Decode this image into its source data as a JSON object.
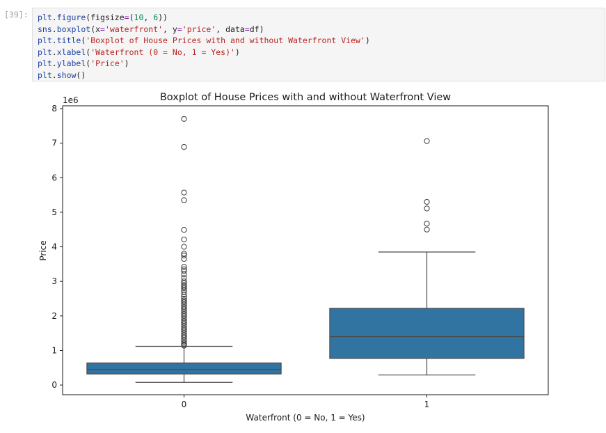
{
  "cell": {
    "prompt": "[39]:",
    "code": [
      [
        [
          "plt",
          "n"
        ],
        [
          ".",
          "p"
        ],
        [
          "figure",
          "n"
        ],
        [
          "(figsize",
          "p"
        ],
        [
          "=",
          "k"
        ],
        [
          "(",
          "p"
        ],
        [
          "10",
          "num"
        ],
        [
          ", ",
          "p"
        ],
        [
          "6",
          "num"
        ],
        [
          "))",
          "p"
        ]
      ],
      [
        [
          "sns",
          "n"
        ],
        [
          ".",
          "p"
        ],
        [
          "boxplot",
          "n"
        ],
        [
          "(x",
          "p"
        ],
        [
          "=",
          "k"
        ],
        [
          "'waterfront'",
          "s"
        ],
        [
          ", y",
          "p"
        ],
        [
          "=",
          "k"
        ],
        [
          "'price'",
          "s"
        ],
        [
          ", data",
          "p"
        ],
        [
          "=",
          "k"
        ],
        [
          "df)",
          "p"
        ]
      ],
      [
        [
          "plt",
          "n"
        ],
        [
          ".",
          "p"
        ],
        [
          "title",
          "n"
        ],
        [
          "(",
          "p"
        ],
        [
          "'Boxplot of House Prices with and without Waterfront View'",
          "s"
        ],
        [
          ")",
          "p"
        ]
      ],
      [
        [
          "plt",
          "n"
        ],
        [
          ".",
          "p"
        ],
        [
          "xlabel",
          "n"
        ],
        [
          "(",
          "p"
        ],
        [
          "'Waterfront (0 = No, 1 = Yes)'",
          "s"
        ],
        [
          ")",
          "p"
        ]
      ],
      [
        [
          "plt",
          "n"
        ],
        [
          ".",
          "p"
        ],
        [
          "ylabel",
          "n"
        ],
        [
          "(",
          "p"
        ],
        [
          "'Price'",
          "s"
        ],
        [
          ")",
          "p"
        ]
      ],
      [
        [
          "plt",
          "n"
        ],
        [
          ".",
          "p"
        ],
        [
          "show",
          "n"
        ],
        [
          "()",
          "p"
        ]
      ]
    ]
  },
  "colors": {
    "box_fill": "#3274a1",
    "line": "#4a4a4a"
  },
  "chart_data": {
    "type": "box",
    "title": "Boxplot of House Prices with and without Waterfront View",
    "xlabel": "Waterfront (0 = No, 1 = Yes)",
    "ylabel": "Price",
    "y_offset_label": "1e6",
    "categories": [
      "0",
      "1"
    ],
    "ylim": [
      -0.28,
      8.08
    ],
    "yticks": [
      0,
      1,
      2,
      3,
      4,
      5,
      6,
      7,
      8
    ],
    "ytick_labels": [
      "0",
      "1",
      "2",
      "3",
      "4",
      "5",
      "6",
      "7",
      "8"
    ],
    "boxes": [
      {
        "category": "0",
        "whisker_low": 0.078,
        "q1": 0.32,
        "median": 0.45,
        "q3": 0.64,
        "whisker_high": 1.12,
        "outliers": [
          7.7,
          6.89,
          5.57,
          5.35,
          4.49,
          4.21,
          4.0,
          3.8,
          3.75,
          3.65,
          3.42,
          3.35,
          3.3,
          3.2,
          3.1,
          3.0,
          2.95,
          2.9,
          2.85,
          2.8,
          2.75,
          2.7,
          2.62,
          2.55,
          2.5,
          2.45,
          2.4,
          2.35,
          2.3,
          2.25,
          2.2,
          2.15,
          2.1,
          2.05,
          2.0,
          1.95,
          1.9,
          1.85,
          1.8,
          1.75,
          1.7,
          1.65,
          1.6,
          1.55,
          1.5,
          1.45,
          1.4,
          1.35,
          1.3,
          1.25,
          1.2,
          1.17,
          1.14
        ]
      },
      {
        "category": "1",
        "whisker_low": 0.29,
        "q1": 0.77,
        "median": 1.4,
        "q3": 2.22,
        "whisker_high": 3.85,
        "outliers": [
          7.06,
          5.3,
          5.11,
          4.67,
          4.5
        ]
      }
    ]
  }
}
